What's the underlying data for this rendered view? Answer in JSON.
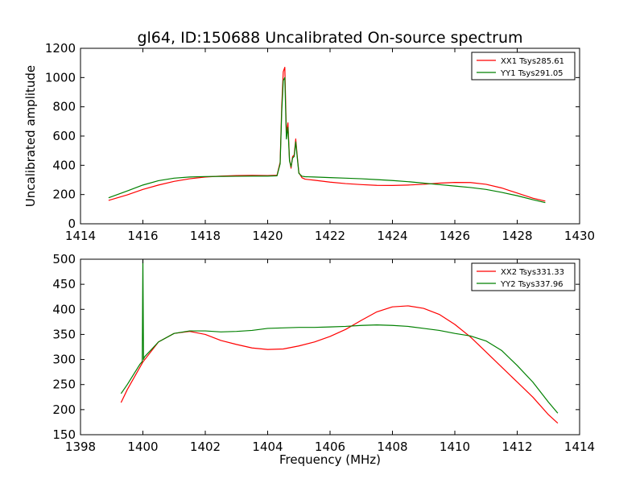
{
  "chart_data": [
    {
      "type": "line",
      "title": "gl64, ID:150688 Uncalibrated On-source spectrum",
      "xlabel": "",
      "ylabel": "Uncalibrated amplitude",
      "xlim": [
        1414,
        1430
      ],
      "ylim": [
        0,
        1200
      ],
      "xticks": [
        1414,
        1416,
        1418,
        1420,
        1422,
        1424,
        1426,
        1428,
        1430
      ],
      "yticks": [
        0,
        200,
        400,
        600,
        800,
        1000,
        1200
      ],
      "legend_position": "top-right",
      "series": [
        {
          "name": "XX1 Tsys285.61",
          "color": "#ff0000",
          "x": [
            1414.9,
            1415.5,
            1416,
            1416.5,
            1417,
            1417.5,
            1418,
            1418.5,
            1419,
            1419.5,
            1420,
            1420.3,
            1420.4,
            1420.45,
            1420.5,
            1420.55,
            1420.6,
            1420.65,
            1420.7,
            1420.75,
            1420.8,
            1420.85,
            1420.9,
            1420.95,
            1421.0,
            1421.1,
            1421.2,
            1421.5,
            1422,
            1422.5,
            1423,
            1423.5,
            1424,
            1424.5,
            1425,
            1425.5,
            1426,
            1426.5,
            1427,
            1427.5,
            1428,
            1428.5,
            1428.9
          ],
          "y": [
            160,
            198,
            235,
            265,
            290,
            308,
            320,
            326,
            330,
            331,
            330,
            332,
            420,
            800,
            1040,
            1070,
            620,
            690,
            440,
            380,
            460,
            470,
            580,
            460,
            350,
            315,
            305,
            298,
            285,
            275,
            268,
            263,
            262,
            265,
            270,
            278,
            283,
            282,
            270,
            245,
            210,
            175,
            155
          ]
        },
        {
          "name": "YY1 Tsys291.05",
          "color": "#008000",
          "x": [
            1414.9,
            1415.5,
            1416,
            1416.5,
            1417,
            1417.5,
            1418,
            1418.5,
            1419,
            1419.5,
            1420,
            1420.3,
            1420.4,
            1420.45,
            1420.5,
            1420.55,
            1420.6,
            1420.65,
            1420.7,
            1420.75,
            1420.8,
            1420.85,
            1420.9,
            1420.95,
            1421.0,
            1421.1,
            1421.2,
            1421.5,
            1422,
            1422.5,
            1423,
            1423.5,
            1424,
            1424.5,
            1425,
            1425.5,
            1426,
            1426.5,
            1427,
            1427.5,
            1428,
            1428.5,
            1428.9
          ],
          "y": [
            178,
            225,
            265,
            295,
            312,
            320,
            323,
            324,
            325,
            326,
            326,
            328,
            410,
            760,
            980,
            1000,
            580,
            660,
            430,
            390,
            450,
            460,
            560,
            450,
            345,
            325,
            322,
            320,
            316,
            312,
            308,
            302,
            296,
            288,
            278,
            268,
            258,
            248,
            235,
            215,
            192,
            165,
            145
          ]
        }
      ]
    },
    {
      "type": "line",
      "title": "",
      "xlabel": "Frequency (MHz)",
      "ylabel": "",
      "xlim": [
        1398,
        1414
      ],
      "ylim": [
        150,
        500
      ],
      "xticks": [
        1398,
        1400,
        1402,
        1404,
        1406,
        1408,
        1410,
        1412,
        1414
      ],
      "yticks": [
        150,
        200,
        250,
        300,
        350,
        400,
        450,
        500
      ],
      "legend_position": "top-right",
      "series": [
        {
          "name": "XX2 Tsys331.33",
          "color": "#ff0000",
          "x": [
            1399.3,
            1399.5,
            1400,
            1400.5,
            1401,
            1401.5,
            1402,
            1402.5,
            1403,
            1403.5,
            1404,
            1404.5,
            1405,
            1405.5,
            1406,
            1406.5,
            1407,
            1407.5,
            1408,
            1408.5,
            1409,
            1409.5,
            1410,
            1410.5,
            1411,
            1411.5,
            1412,
            1412.5,
            1413,
            1413.3
          ],
          "y": [
            214,
            240,
            295,
            335,
            352,
            356,
            350,
            338,
            330,
            323,
            320,
            321,
            327,
            335,
            346,
            360,
            378,
            395,
            405,
            407,
            402,
            390,
            370,
            345,
            315,
            285,
            255,
            225,
            190,
            173
          ]
        },
        {
          "name": "YY2 Tsys337.96",
          "color": "#008000",
          "x": [
            1399.3,
            1399.5,
            1399.9,
            1399.98,
            1400.0,
            1400.02,
            1400.05,
            1400.5,
            1401,
            1401.5,
            1402,
            1402.5,
            1403,
            1403.5,
            1404,
            1404.5,
            1405,
            1405.5,
            1406,
            1406.5,
            1407,
            1407.5,
            1408,
            1408.5,
            1409,
            1409.5,
            1410,
            1410.5,
            1411,
            1411.5,
            1412,
            1412.5,
            1413,
            1413.3
          ],
          "y": [
            232,
            250,
            290,
            296,
            500,
            300,
            305,
            335,
            352,
            357,
            357,
            355,
            356,
            358,
            362,
            363,
            364,
            364,
            365,
            366,
            368,
            369,
            368,
            366,
            362,
            358,
            352,
            347,
            337,
            318,
            288,
            255,
            215,
            193
          ]
        }
      ]
    }
  ]
}
